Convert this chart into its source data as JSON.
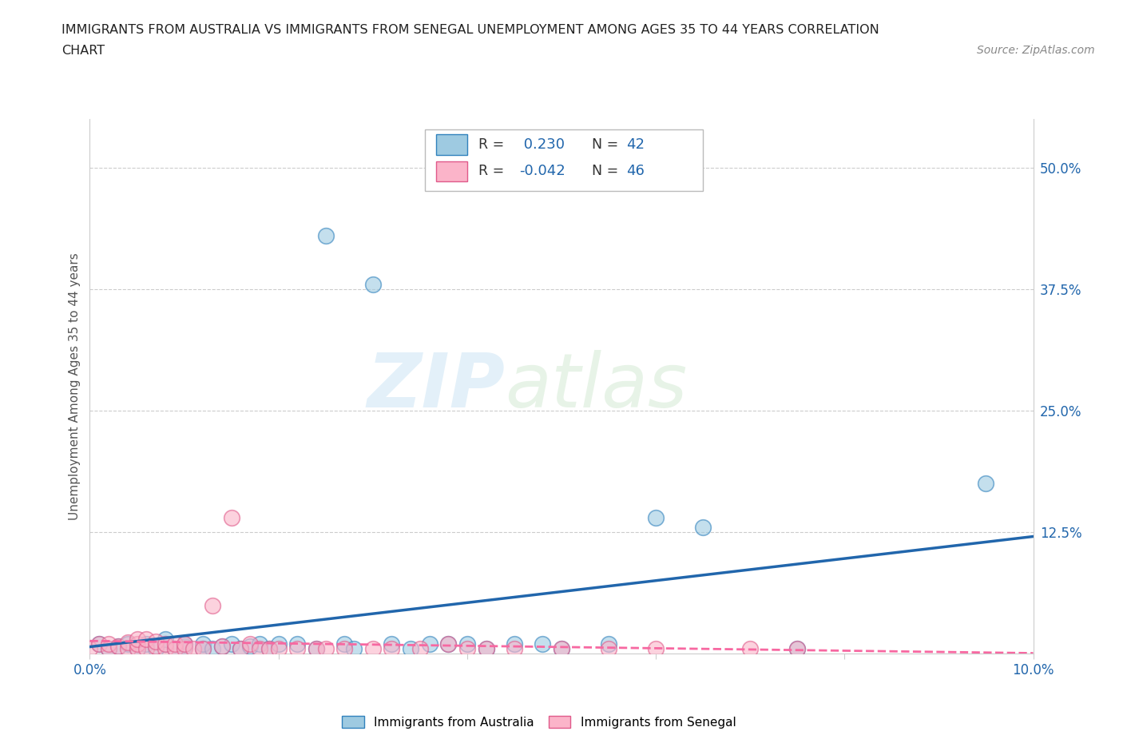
{
  "title_line1": "IMMIGRANTS FROM AUSTRALIA VS IMMIGRANTS FROM SENEGAL UNEMPLOYMENT AMONG AGES 35 TO 44 YEARS CORRELATION",
  "title_line2": "CHART",
  "source_text": "Source: ZipAtlas.com",
  "ylabel": "Unemployment Among Ages 35 to 44 years",
  "xlim": [
    0.0,
    0.1
  ],
  "ylim": [
    0.0,
    0.55
  ],
  "xtick_positions": [
    0.0,
    0.02,
    0.04,
    0.06,
    0.08,
    0.1
  ],
  "xtick_labels": [
    "0.0%",
    "",
    "",
    "",
    "",
    "10.0%"
  ],
  "ytick_positions": [
    0.0,
    0.125,
    0.25,
    0.375,
    0.5
  ],
  "ytick_labels": [
    "",
    "12.5%",
    "25.0%",
    "37.5%",
    "50.0%"
  ],
  "australia_scatter_color": "#9ecae1",
  "australia_edge_color": "#3182bd",
  "senegal_scatter_color": "#fbb4c9",
  "senegal_edge_color": "#e05a8a",
  "australia_trend_color": "#2166ac",
  "senegal_trend_color": "#f768a1",
  "r_australia": 0.23,
  "n_australia": 42,
  "r_senegal": -0.042,
  "n_senegal": 46,
  "australia_x": [
    0.001,
    0.002,
    0.003,
    0.004,
    0.005,
    0.006,
    0.007,
    0.008,
    0.008,
    0.009,
    0.01,
    0.01,
    0.012,
    0.012,
    0.013,
    0.014,
    0.015,
    0.016,
    0.017,
    0.018,
    0.019,
    0.02,
    0.022,
    0.024,
    0.025,
    0.027,
    0.028,
    0.03,
    0.032,
    0.034,
    0.036,
    0.038,
    0.04,
    0.042,
    0.045,
    0.048,
    0.05,
    0.055,
    0.06,
    0.065,
    0.075,
    0.095
  ],
  "australia_y": [
    0.01,
    0.005,
    0.008,
    0.01,
    0.005,
    0.01,
    0.005,
    0.01,
    0.015,
    0.005,
    0.008,
    0.01,
    0.005,
    0.01,
    0.005,
    0.008,
    0.01,
    0.005,
    0.008,
    0.01,
    0.005,
    0.01,
    0.01,
    0.005,
    0.43,
    0.01,
    0.005,
    0.38,
    0.01,
    0.005,
    0.01,
    0.01,
    0.01,
    0.005,
    0.01,
    0.01,
    0.005,
    0.01,
    0.14,
    0.13,
    0.005,
    0.175
  ],
  "senegal_x": [
    0.0,
    0.001,
    0.002,
    0.002,
    0.003,
    0.004,
    0.004,
    0.005,
    0.005,
    0.005,
    0.006,
    0.006,
    0.007,
    0.007,
    0.008,
    0.008,
    0.009,
    0.009,
    0.01,
    0.01,
    0.011,
    0.012,
    0.013,
    0.014,
    0.015,
    0.016,
    0.017,
    0.018,
    0.019,
    0.02,
    0.022,
    0.024,
    0.025,
    0.027,
    0.03,
    0.032,
    0.035,
    0.038,
    0.04,
    0.042,
    0.045,
    0.05,
    0.055,
    0.06,
    0.07,
    0.075
  ],
  "senegal_y": [
    0.005,
    0.01,
    0.005,
    0.01,
    0.008,
    0.005,
    0.012,
    0.005,
    0.01,
    0.015,
    0.005,
    0.015,
    0.008,
    0.013,
    0.005,
    0.01,
    0.005,
    0.01,
    0.005,
    0.01,
    0.005,
    0.005,
    0.05,
    0.008,
    0.14,
    0.005,
    0.01,
    0.005,
    0.005,
    0.005,
    0.005,
    0.005,
    0.005,
    0.005,
    0.005,
    0.005,
    0.005,
    0.01,
    0.005,
    0.005,
    0.005,
    0.005,
    0.005,
    0.005,
    0.005,
    0.005
  ]
}
